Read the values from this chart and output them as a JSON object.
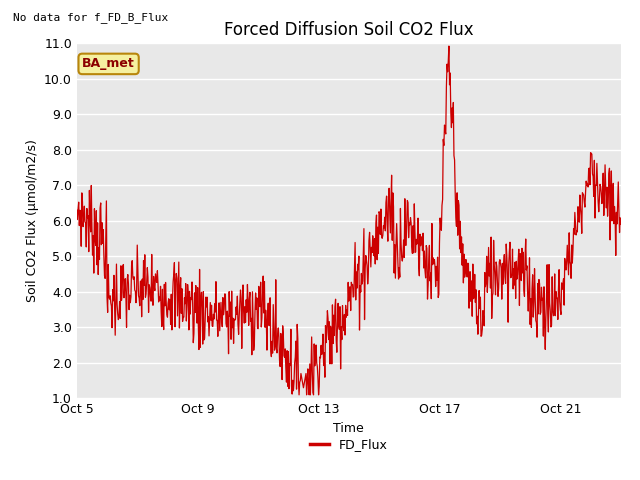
{
  "title": "Forced Diffusion Soil CO2 Flux",
  "ylabel": "Soil CO2 Flux (μmol/m2/s)",
  "xlabel": "Time",
  "top_left_text": "No data for f_FD_B_Flux",
  "legend_label": "FD_Flux",
  "line_color": "#cc0000",
  "fig_bg_color": "#ffffff",
  "plot_bg_color": "#e8e8e8",
  "ylim": [
    1.0,
    11.0
  ],
  "yticks": [
    1.0,
    2.0,
    3.0,
    4.0,
    5.0,
    6.0,
    7.0,
    8.0,
    9.0,
    10.0,
    11.0
  ],
  "xtick_days": [
    5,
    9,
    13,
    17,
    21
  ],
  "xtick_labels": [
    "Oct 5",
    "Oct 9",
    "Oct 13",
    "Oct 17",
    "Oct 21"
  ],
  "ba_met_text": "BA_met",
  "title_fontsize": 12,
  "label_fontsize": 9,
  "tick_fontsize": 9
}
